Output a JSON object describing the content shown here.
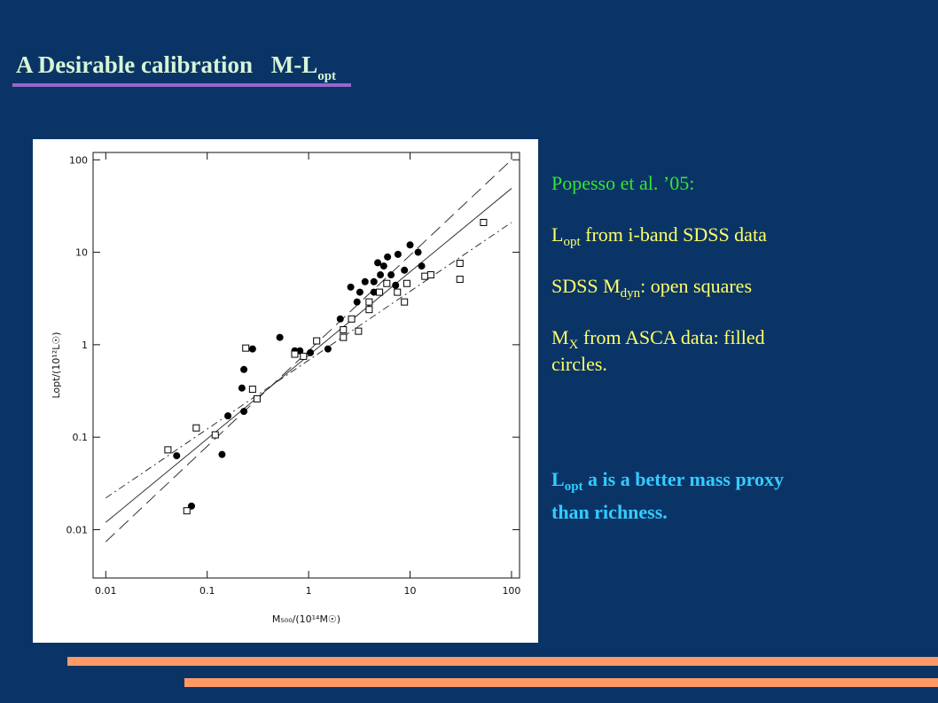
{
  "title": [
    "A Desirable calibration",
    "M-L",
    "opt"
  ],
  "lines": [
    [
      "Popesso et al. ’05:"
    ],
    [
      "L",
      "opt",
      " from i-band SDSS data"
    ],
    [
      "SDSS M",
      "dyn",
      ": open squares"
    ],
    [
      "M",
      "X",
      " from ASCA data: filled"
    ],
    [
      "circles."
    ],
    [
      "L",
      "opt",
      " a is a better  mass proxy"
    ],
    [
      "than richness."
    ]
  ],
  "chart_data": {
    "type": "scatter",
    "xscale": "log",
    "yscale": "log",
    "x_label": "M₅₀₀/(10¹⁴M☉)",
    "y_label": "Lopt/(10¹²L☉)",
    "xlim": [
      0.0075,
      120
    ],
    "ylim": [
      0.003,
      120
    ],
    "xticks": [
      0.01,
      0.1,
      1,
      10,
      100
    ],
    "yticks": [
      0.01,
      0.1,
      1,
      10,
      100
    ],
    "series": [
      {
        "marker": "circle",
        "color": "#000000",
        "x": [
          0.05,
          0.07,
          0.14,
          0.16,
          0.22,
          0.23,
          0.23,
          0.28,
          0.52,
          0.73,
          0.82,
          1.04,
          1.55,
          2.05,
          2.6,
          3.0,
          3.2,
          3.6,
          4.4,
          4.8,
          5.1,
          5.5,
          6.0,
          6.5,
          7.6,
          8.8,
          10,
          12,
          13,
          4.4,
          7.2
        ],
        "values": [
          0.063,
          0.018,
          0.065,
          0.17,
          0.34,
          0.54,
          0.19,
          0.9,
          1.2,
          0.86,
          0.86,
          0.82,
          0.9,
          1.9,
          4.2,
          2.9,
          3.7,
          4.8,
          3.7,
          7.7,
          5.7,
          7.1,
          8.9,
          5.7,
          9.5,
          6.4,
          12,
          10,
          7.1,
          4.8,
          4.4
        ]
      },
      {
        "marker": "square",
        "color": "#000000",
        "x": [
          0.041,
          0.078,
          0.063,
          0.12,
          0.28,
          0.24,
          0.31,
          0.73,
          0.89,
          1.2,
          2.2,
          2.2,
          2.65,
          3.1,
          3.95,
          5,
          5.9,
          7.5,
          9.3,
          14,
          16,
          31,
          31,
          53,
          3.95,
          8.8
        ],
        "values": [
          0.073,
          0.126,
          0.016,
          0.106,
          0.33,
          0.92,
          0.26,
          0.79,
          0.75,
          1.1,
          1.2,
          1.45,
          1.9,
          1.4,
          2.9,
          3.7,
          4.6,
          3.7,
          4.6,
          5.5,
          5.7,
          7.6,
          5.1,
          21,
          2.4,
          2.9
        ]
      }
    ],
    "fits": [
      {
        "dash": "solid",
        "x": [
          0.01,
          100
        ],
        "values": [
          0.012,
          49
        ]
      },
      {
        "dash": "dashed",
        "x": [
          0.01,
          100
        ],
        "values": [
          0.0074,
          100
        ]
      },
      {
        "dash": "dashdot",
        "x": [
          0.01,
          100
        ],
        "values": [
          0.022,
          21
        ]
      }
    ]
  }
}
